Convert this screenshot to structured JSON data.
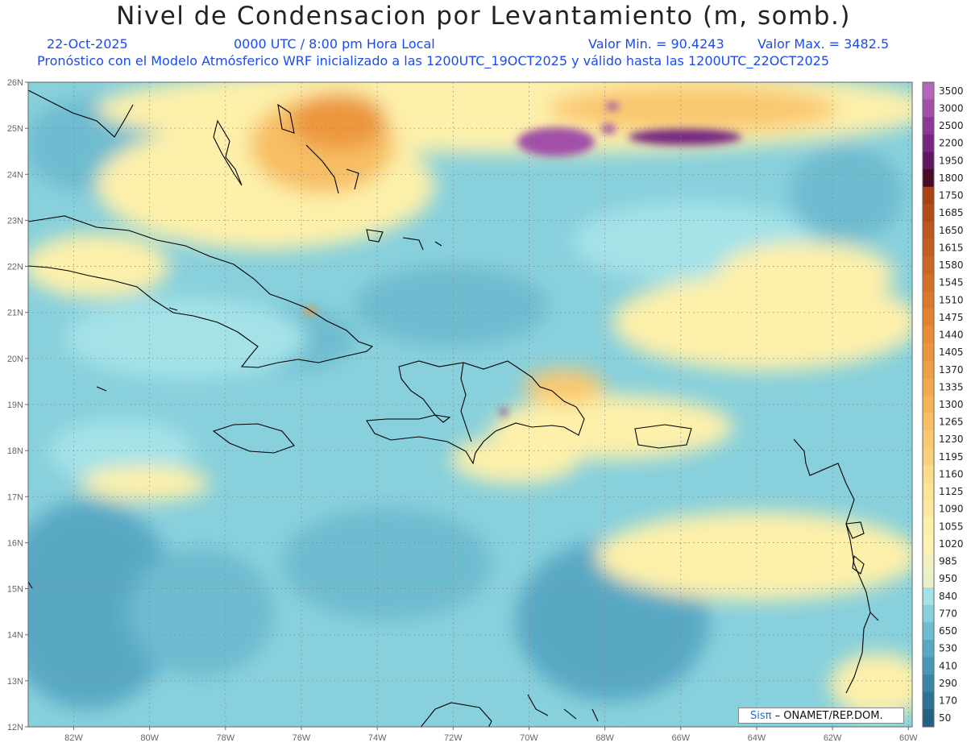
{
  "header": {
    "title": "Nivel de Condensacion por Levantamiento (m, somb.)",
    "date": "22-Oct-2025",
    "time": "0000 UTC / 8:00 pm Hora Local",
    "vmin": "Valor Min. = 90.4243",
    "vmax": "Valor Max. = 3482.5",
    "info": "Pronóstico con el Modelo Atmósferico WRF inicializado a las 1200UTC_19OCT2025 y válido hasta las  1200UTC_22OCT2025"
  },
  "map": {
    "lat_labels": [
      "26N",
      "25N",
      "24N",
      "23N",
      "22N",
      "21N",
      "20N",
      "19N",
      "18N",
      "17N",
      "16N",
      "15N",
      "14N",
      "13N",
      "12N"
    ],
    "lon_labels": [
      "82W",
      "80W",
      "78W",
      "76W",
      "74W",
      "72W",
      "70W",
      "68W",
      "66W",
      "64W",
      "62W",
      "60W"
    ],
    "lon_range": [
      -83.2,
      -59.9
    ],
    "lat_range": [
      12,
      26
    ]
  },
  "colorbar": {
    "levels": [
      "3500",
      "3000",
      "2500",
      "2200",
      "1950",
      "1800",
      "1750",
      "1685",
      "1650",
      "1615",
      "1580",
      "1545",
      "1510",
      "1475",
      "1440",
      "1405",
      "1370",
      "1335",
      "1300",
      "1265",
      "1230",
      "1195",
      "1160",
      "1125",
      "1090",
      "1055",
      "1020",
      "985",
      "950",
      "840",
      "770",
      "650",
      "530",
      "410",
      "290",
      "170",
      "50"
    ],
    "colors": [
      "#b367b8",
      "#a150a8",
      "#8a3a94",
      "#762682",
      "#5f1660",
      "#4a0b2a",
      "#a84414",
      "#b24c18",
      "#bc561c",
      "#c45e20",
      "#cc6624",
      "#d46f28",
      "#dc782c",
      "#e28230",
      "#e88c36",
      "#ec963c",
      "#f0a044",
      "#f3aa4e",
      "#f5b458",
      "#f7be64",
      "#f9c870",
      "#fad27c",
      "#fbdc88",
      "#fce494",
      "#fdeaa0",
      "#fdf0aa",
      "#fdf4b4",
      "#f5f0c0",
      "#eaf0c8",
      "#a4e2e8",
      "#88d0dc",
      "#6ebcd0",
      "#58a8c4",
      "#4896b6",
      "#3a84a6",
      "#2e7296",
      "#246080"
    ]
  },
  "credit": {
    "sis": "Sisπ",
    "text": "– ONAMET/REP.DOM."
  }
}
